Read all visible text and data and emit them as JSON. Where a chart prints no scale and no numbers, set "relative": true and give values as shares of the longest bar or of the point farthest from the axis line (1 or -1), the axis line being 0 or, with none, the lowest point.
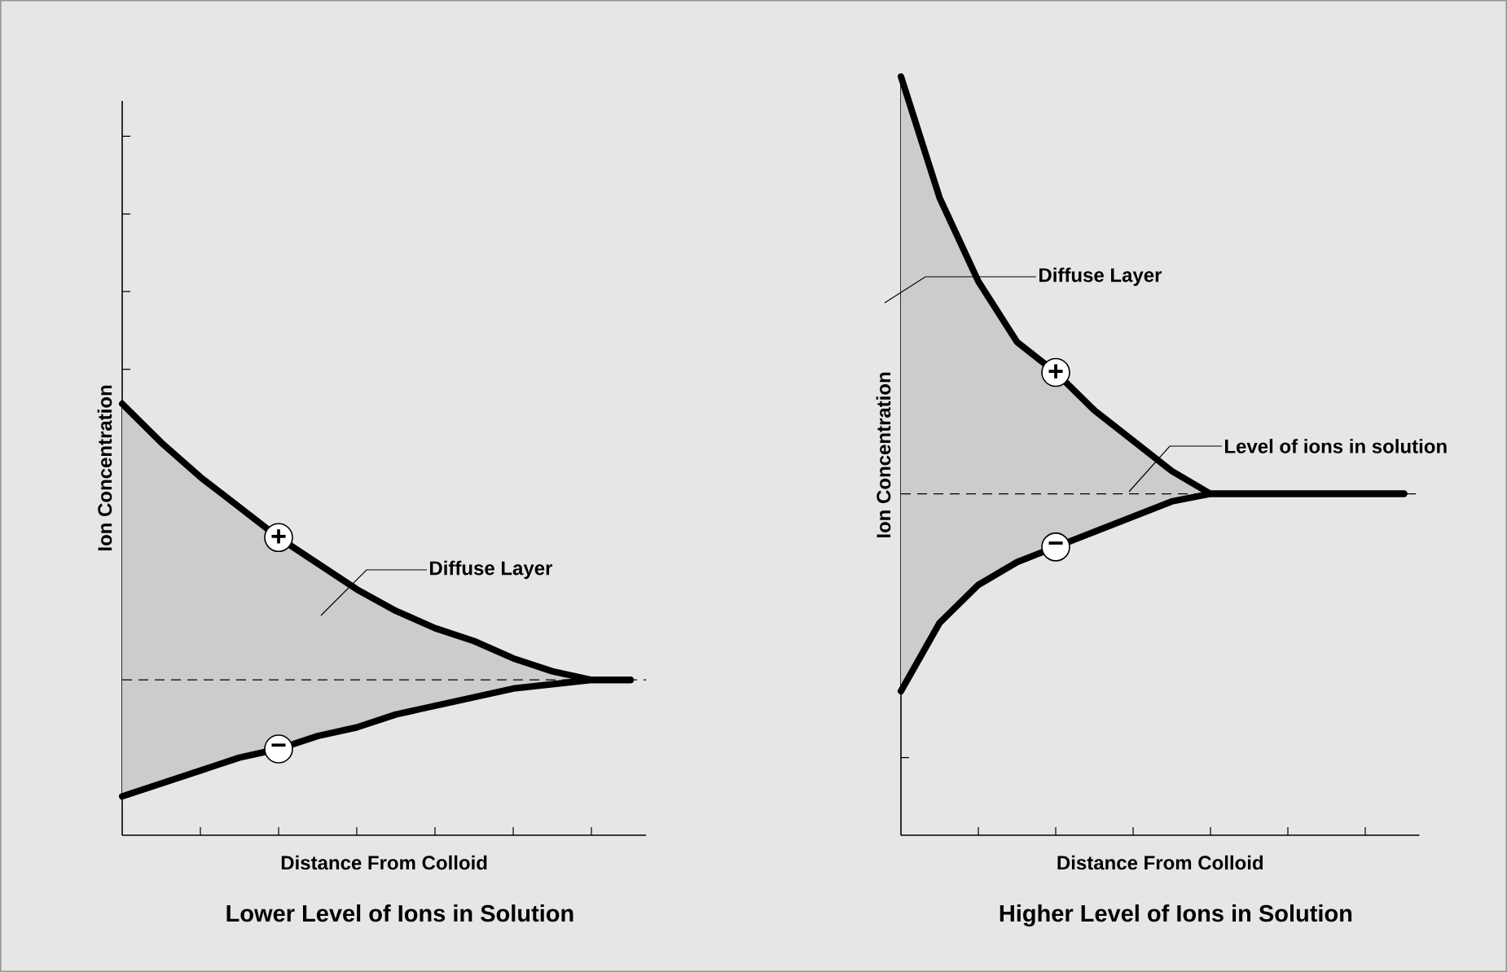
{
  "chart_data": [
    {
      "type": "line",
      "title": "Lower Level of Ions in Solution",
      "xlabel": "Distance From Colloid",
      "ylabel": "Ion Concentration",
      "relative": true,
      "tick_labels": false,
      "grid": false,
      "marker": "none",
      "categories": [
        null,
        null,
        null,
        null,
        null,
        null,
        null,
        null,
        null,
        null,
        null,
        null,
        null,
        null
      ],
      "series": [
        {
          "name": "+",
          "color": "#000000",
          "values": [
            1,
            0.91,
            0.83,
            0.76,
            0.69,
            0.63,
            0.57,
            0.52,
            0.48,
            0.45,
            0.41,
            0.38,
            0.36,
            0.36
          ],
          "lower": [
            0.09,
            0.12,
            0.15,
            0.18,
            0.2,
            0.23,
            0.25,
            0.28,
            0.3,
            0.32,
            0.34,
            0.35,
            0.36,
            0.36
          ],
          "upper": [
            1,
            0.91,
            0.83,
            0.76,
            0.69,
            0.63,
            0.57,
            0.52,
            0.48,
            0.45,
            0.41,
            0.38,
            0.36,
            0.36
          ]
        },
        {
          "name": "−",
          "color": "#000000",
          "values": [
            0.09,
            0.12,
            0.15,
            0.18,
            0.2,
            0.23,
            0.25,
            0.28,
            0.3,
            0.32,
            0.34,
            0.35,
            0.36,
            0.36
          ]
        }
      ],
      "ref_lines": [
        {
          "axis": "y",
          "value": 0.36,
          "color": "#000000",
          "line_style": "dashed"
        }
      ],
      "annotations": [
        "Diffuse Layer"
      ]
    },
    {
      "type": "line",
      "title": "Higher Level of Ions in Solution",
      "xlabel": "Distance From Colloid",
      "ylabel": "Ion Concentration",
      "relative": true,
      "tick_labels": false,
      "grid": false,
      "marker": "none",
      "categories": [
        null,
        null,
        null,
        null,
        null,
        null,
        null,
        null,
        null,
        null,
        null,
        null,
        null,
        null
      ],
      "series": [
        {
          "name": "+",
          "color": "#000000",
          "values": [
            1,
            0.84,
            0.73,
            0.65,
            0.61,
            0.56,
            0.52,
            0.48,
            0.45,
            0.45,
            0.45,
            0.45,
            0.45,
            0.45
          ],
          "lower": [
            0.19,
            0.28,
            0.33,
            0.36,
            0.38,
            0.4,
            0.42,
            0.44,
            0.45,
            0.45,
            0.45,
            0.45,
            0.45,
            0.45
          ],
          "upper": [
            1,
            0.84,
            0.73,
            0.65,
            0.61,
            0.56,
            0.52,
            0.48,
            0.45,
            0.45,
            0.45,
            0.45,
            0.45,
            0.45
          ]
        },
        {
          "name": "−",
          "color": "#000000",
          "values": [
            0.19,
            0.28,
            0.33,
            0.36,
            0.38,
            0.4,
            0.42,
            0.44,
            0.45,
            0.45,
            0.45,
            0.45,
            0.45,
            0.45
          ]
        }
      ],
      "ref_lines": [
        {
          "axis": "y",
          "value": 0.45,
          "label": "Level of ions in solution",
          "color": "#000000",
          "line_style": "dashed"
        }
      ],
      "annotations": [
        "Diffuse Layer"
      ]
    }
  ]
}
